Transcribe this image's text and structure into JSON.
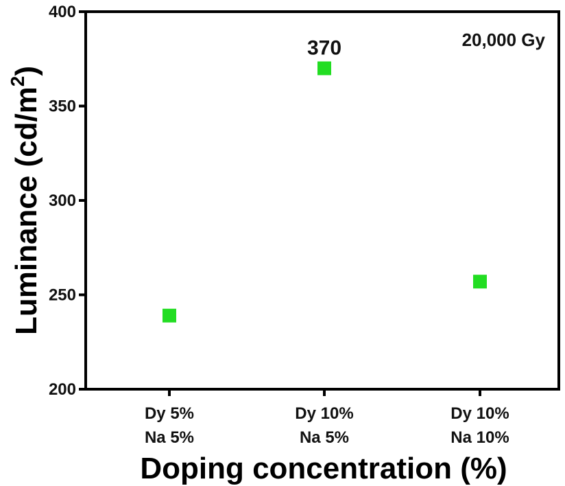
{
  "chart_data": {
    "type": "scatter",
    "categories": [
      [
        "Dy 5%",
        "Na 5%"
      ],
      [
        "Dy 10%",
        "Na 5%"
      ],
      [
        "Dy 10%",
        "Na 10%"
      ]
    ],
    "values": [
      239,
      370,
      257
    ],
    "data_labels": [
      "",
      "370",
      ""
    ],
    "xlabel": "Doping concentration (%)",
    "ylabel_main": "Luminance (cd/m",
    "ylabel_sup": "2",
    "ylabel_close": ")",
    "ylim": [
      200,
      400
    ],
    "yticks": [
      200,
      250,
      300,
      350,
      400
    ],
    "annotation": "20,000 Gy",
    "marker": "square",
    "marker_color": "#22dd22",
    "grid": false
  }
}
